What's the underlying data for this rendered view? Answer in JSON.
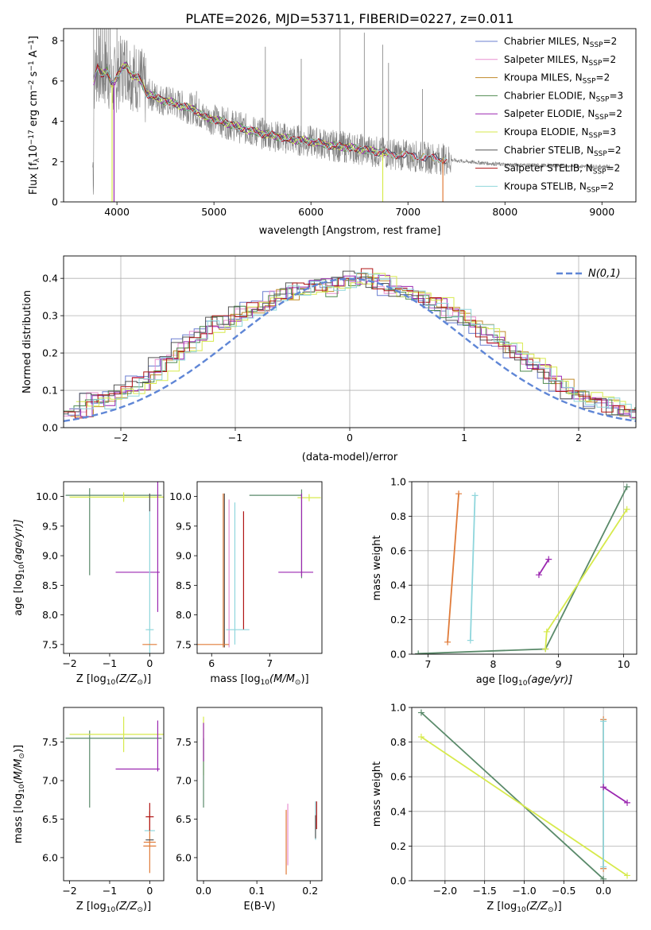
{
  "figure": {
    "title": "PLATE=2026, MJD=53711, FIBERID=0227, z=0.011"
  },
  "model_colors": {
    "Chabrier MILES": "#6b7fd1",
    "Salpeter MILES": "#e88fd0",
    "Kroupa MILES": "#c08a2a",
    "Chabrier ELODIE": "#4f8a4f",
    "Salpeter ELODIE": "#9b27b0",
    "Kroupa ELODIE": "#d7ea4c",
    "Chabrier STELIB": "#555555",
    "Salpeter STELIB": "#b01515",
    "Kroupa STELIB": "#8fd6dc",
    "MILES": "#e07b39",
    "ELODIE": "#5a8a6a",
    "data": "#808080",
    "normal": "#5f86d6"
  },
  "chart_data": [
    {
      "id": "spectrum",
      "type": "line",
      "xlabel": "wavelength [Angstrom, rest frame]",
      "ylabel_main": "Flux [f",
      "ylabel_sub": "λ",
      "ylabel_rest": "10",
      "ylabel_exp1": "−17",
      "ylabel_mid": " erg cm",
      "ylabel_exp2": "−2",
      "ylabel_s": " s",
      "ylabel_exp3": "−1",
      "ylabel_end": " A",
      "ylabel_exp4": "−1",
      "ylabel_close": "]",
      "xlim": [
        3450,
        9350
      ],
      "ylim": [
        0,
        8.6
      ],
      "xticks": [
        "4000",
        "5000",
        "6000",
        "7000",
        "8000",
        "9000"
      ],
      "yticks": [
        "0",
        "2",
        "4",
        "6",
        "8"
      ],
      "legend_position": "top-right",
      "legend": [
        {
          "label": "Chabrier MILES, N",
          "sub": "SSP",
          "suffix": "=2",
          "key": "Chabrier MILES"
        },
        {
          "label": "Salpeter MILES, N",
          "sub": "SSP",
          "suffix": "=2",
          "key": "Salpeter MILES"
        },
        {
          "label": "Kroupa MILES, N",
          "sub": "SSP",
          "suffix": "=2",
          "key": "Kroupa MILES"
        },
        {
          "label": "Chabrier ELODIE, N",
          "sub": "SSP",
          "suffix": "=3",
          "key": "Chabrier ELODIE"
        },
        {
          "label": "Salpeter ELODIE, N",
          "sub": "SSP",
          "suffix": "=2",
          "key": "Salpeter ELODIE"
        },
        {
          "label": "Kroupa ELODIE, N",
          "sub": "SSP",
          "suffix": "=3",
          "key": "Kroupa ELODIE"
        },
        {
          "label": "Chabrier STELIB, N",
          "sub": "SSP",
          "suffix": "=2",
          "key": "Chabrier STELIB"
        },
        {
          "label": "Salpeter STELIB, N",
          "sub": "SSP",
          "suffix": "=2",
          "key": "Salpeter STELIB"
        },
        {
          "label": "Kroupa STELIB, N",
          "sub": "SSP",
          "suffix": "=2",
          "key": "Kroupa STELIB"
        }
      ],
      "model_continuum": [
        [
          3760,
          6.0
        ],
        [
          3800,
          6.7
        ],
        [
          3850,
          6.3
        ],
        [
          3900,
          6.5
        ],
        [
          3950,
          5.8
        ],
        [
          4000,
          6.2
        ],
        [
          4050,
          6.6
        ],
        [
          4100,
          6.8
        ],
        [
          4150,
          6.3
        ],
        [
          4200,
          6.2
        ],
        [
          4250,
          6.0
        ],
        [
          4300,
          5.4
        ],
        [
          4400,
          5.2
        ],
        [
          4500,
          5.0
        ],
        [
          4600,
          4.9
        ],
        [
          4700,
          4.7
        ],
        [
          4800,
          4.6
        ],
        [
          4900,
          4.2
        ],
        [
          5000,
          4.1
        ],
        [
          5200,
          3.8
        ],
        [
          5400,
          3.5
        ],
        [
          5600,
          3.3
        ],
        [
          5800,
          3.1
        ],
        [
          6000,
          3.0
        ],
        [
          6200,
          2.8
        ],
        [
          6400,
          2.7
        ],
        [
          6600,
          2.55
        ],
        [
          6800,
          2.4
        ],
        [
          7000,
          2.3
        ],
        [
          7200,
          2.2
        ],
        [
          7400,
          2.1
        ],
        [
          7600,
          2.0
        ],
        [
          8000,
          1.85
        ],
        [
          8500,
          1.8
        ],
        [
          9000,
          1.75
        ]
      ],
      "data_range": [
        3750,
        9080
      ],
      "data_spikes": [
        [
          3760,
          8.6
        ],
        [
          3790,
          8.6
        ],
        [
          3810,
          8.6
        ],
        [
          3830,
          8.6
        ],
        [
          3850,
          8.6
        ],
        [
          3870,
          8.6
        ],
        [
          3890,
          8.6
        ],
        [
          3910,
          8.6
        ],
        [
          3930,
          8.6
        ],
        [
          4000,
          8.6
        ],
        [
          4820,
          5.5
        ],
        [
          5530,
          7.7
        ],
        [
          5900,
          7.1
        ],
        [
          6300,
          8.6
        ],
        [
          6550,
          8.4
        ],
        [
          6740,
          7.8
        ],
        [
          6800,
          6.9
        ],
        [
          7150,
          5.6
        ]
      ],
      "model_dropouts": [
        [
          3950,
          "Kroupa ELODIE"
        ],
        [
          3970,
          "Salpeter ELODIE"
        ],
        [
          6740,
          "Kroupa ELODIE"
        ],
        [
          7360,
          "MILES"
        ]
      ]
    },
    {
      "id": "residual_hist",
      "type": "histogram",
      "xlabel": "(data-model)/error",
      "ylabel": "Normed distribution",
      "xlim": [
        -2.5,
        2.5
      ],
      "ylim": [
        0,
        0.46
      ],
      "xticks": [
        "−2",
        "−1",
        "0",
        "1",
        "2"
      ],
      "yticks": [
        "0.0",
        "0.1",
        "0.2",
        "0.3",
        "0.4"
      ],
      "bin_width": 0.1,
      "bin_start": -2.5,
      "legend_position": "top-right",
      "normal_label": "N(0,1)",
      "base_hist": [
        0.05,
        0.045,
        0.075,
        0.07,
        0.09,
        0.1,
        0.12,
        0.14,
        0.17,
        0.19,
        0.22,
        0.24,
        0.27,
        0.28,
        0.29,
        0.31,
        0.32,
        0.33,
        0.35,
        0.36,
        0.37,
        0.38,
        0.38,
        0.37,
        0.39,
        0.4,
        0.41,
        0.39,
        0.37,
        0.36,
        0.35,
        0.34,
        0.33,
        0.31,
        0.3,
        0.28,
        0.26,
        0.24,
        0.22,
        0.2,
        0.17,
        0.15,
        0.13,
        0.11,
        0.09,
        0.08,
        0.07,
        0.06,
        0.05,
        0.04,
        0.035,
        0.03,
        0.03,
        0.025,
        0.025,
        0.02,
        0.02,
        0.02,
        0.02,
        0.025,
        0.025,
        0.025,
        0.025,
        0.02,
        0.02,
        0.02,
        0.02,
        0.02,
        0.02,
        0.02
      ]
    },
    {
      "id": "age_vs_Z",
      "type": "errorbar",
      "xlabel": "Z [log",
      "xlabel_sub": "10",
      "xlabel_rest": "(Z/Z",
      "xlabel_sun": "⊙",
      "xlabel_close": ")]",
      "ylabel": "age  [log",
      "ylabel_sub": "10",
      "ylabel_rest": "(age/yr)]",
      "xlim": [
        -2.15,
        0.35
      ],
      "ylim": [
        7.35,
        10.25
      ],
      "xticks": [
        "−2",
        "−1",
        "0"
      ],
      "yticks": [
        "7.5",
        "8.0",
        "8.5",
        "9.0",
        "9.5",
        "10.0"
      ],
      "points": [
        {
          "x": -0.9,
          "y": 10.02,
          "xerr": 1.2,
          "yerr": 0.0,
          "c": "ELODIE"
        },
        {
          "x": -1.5,
          "y": 10.02,
          "xerr": 0.0,
          "yerr": [
            1.35,
            0.12
          ],
          "c": "ELODIE"
        },
        {
          "x": -0.65,
          "y": 9.99,
          "xerr": 1.35,
          "yerr": 0.08,
          "c": "Kroupa ELODIE"
        },
        {
          "x": -0.3,
          "y": 8.72,
          "xerr": 0.55,
          "yerr": 0.0,
          "c": "Salpeter ELODIE"
        },
        {
          "x": 0.2,
          "y": 9.35,
          "xerr": 0.0,
          "yerr": 1.3,
          "c": "Salpeter ELODIE"
        },
        {
          "x": 0.0,
          "y": 7.75,
          "xerr": 0.1,
          "yerr": 2.2,
          "c": "Kroupa STELIB"
        },
        {
          "x": 0.0,
          "y": 7.5,
          "xerr": 0.18,
          "yerr": 0.0,
          "c": "MILES"
        },
        {
          "x": 0.0,
          "y": 9.9,
          "xerr": 0.0,
          "yerr": 0.15,
          "c": "Chabrier STELIB"
        }
      ]
    },
    {
      "id": "age_vs_mass",
      "type": "errorbar",
      "xlabel": "mass [log",
      "xlabel_sub": "10",
      "xlabel_rest": "(M/M",
      "xlabel_sun": "⊙",
      "xlabel_close": ")]",
      "xlim": [
        5.75,
        7.9
      ],
      "ylim": [
        7.35,
        10.25
      ],
      "xticks": [
        "6",
        "7"
      ],
      "yticks": [
        "7.5",
        "8.0",
        "8.5",
        "9.0",
        "9.5",
        "10.0"
      ],
      "points": [
        {
          "x": 6.2,
          "y": 8.75,
          "xerr": 0.0,
          "yerr": 1.3,
          "c": "MILES"
        },
        {
          "x": 6.22,
          "y": 8.75,
          "xerr": 0.0,
          "yerr": 1.3,
          "c": "Chabrier STELIB"
        },
        {
          "x": 6.3,
          "y": 8.7,
          "xerr": 0.0,
          "yerr": 1.25,
          "c": "Salpeter MILES"
        },
        {
          "x": 6.4,
          "y": 8.7,
          "xerr": 0.0,
          "yerr": 1.2,
          "c": "Kroupa STELIB"
        },
        {
          "x": 6.55,
          "y": 8.75,
          "xerr": 0.0,
          "yerr": 1.0,
          "c": "Salpeter STELIB"
        },
        {
          "x": 6.0,
          "y": 7.5,
          "xerr": 0.3,
          "yerr": 0.0,
          "c": "MILES"
        },
        {
          "x": 6.45,
          "y": 7.75,
          "xerr": 0.2,
          "yerr": 0.0,
          "c": "Kroupa STELIB"
        },
        {
          "x": 7.1,
          "y": 10.02,
          "xerr": 0.45,
          "yerr": 0.0,
          "c": "ELODIE"
        },
        {
          "x": 7.55,
          "y": 10.02,
          "xerr": 0.0,
          "yerr": [
            1.4,
            0.1
          ],
          "c": "ELODIE"
        },
        {
          "x": 7.68,
          "y": 9.98,
          "xerr": 0.2,
          "yerr": 0.06,
          "c": "Kroupa ELODIE"
        },
        {
          "x": 7.55,
          "y": 9.35,
          "xerr": 0.0,
          "yerr": 0.7,
          "c": "Salpeter ELODIE"
        },
        {
          "x": 7.45,
          "y": 8.72,
          "xerr": 0.3,
          "yerr": 0.0,
          "c": "Salpeter ELODIE"
        }
      ]
    },
    {
      "id": "weight_vs_age",
      "type": "line",
      "xlabel": "age  [log",
      "xlabel_sub": "10",
      "xlabel_rest": "(age/yr)]",
      "ylabel": "mass weight",
      "xlim": [
        6.75,
        10.2
      ],
      "ylim": [
        0.0,
        1.0
      ],
      "xticks": [
        "7",
        "8",
        "9",
        "10"
      ],
      "yticks": [
        "0.0",
        "0.2",
        "0.4",
        "0.6",
        "0.8",
        "1.0"
      ],
      "series": [
        {
          "c": "MILES",
          "pts": [
            [
              7.3,
              0.07
            ],
            [
              7.47,
              0.93
            ]
          ]
        },
        {
          "c": "Kroupa STELIB",
          "pts": [
            [
              7.65,
              0.08
            ],
            [
              7.72,
              0.92
            ]
          ]
        },
        {
          "c": "Salpeter ELODIE",
          "pts": [
            [
              8.7,
              0.46
            ],
            [
              8.85,
              0.55
            ]
          ]
        },
        {
          "c": "ELODIE",
          "pts": [
            [
              6.85,
              0.003
            ],
            [
              8.8,
              0.03
            ],
            [
              10.05,
              0.97
            ]
          ]
        },
        {
          "c": "Kroupa ELODIE",
          "pts": [
            [
              8.8,
              0.03
            ],
            [
              8.82,
              0.13
            ],
            [
              10.05,
              0.84
            ]
          ]
        }
      ]
    },
    {
      "id": "mass_vs_Z",
      "type": "errorbar",
      "xlabel": "Z [log",
      "xlabel_sub": "10",
      "xlabel_rest": "(Z/Z",
      "xlabel_sun": "⊙",
      "xlabel_close": ")]",
      "ylabel": "mass [log",
      "ylabel_sub": "10",
      "ylabel_rest": "(M/M",
      "ylabel_sun": "⊙",
      "ylabel_close": ")]",
      "xlim": [
        -2.15,
        0.35
      ],
      "ylim": [
        5.7,
        7.95
      ],
      "xticks": [
        "−2",
        "−1",
        "0"
      ],
      "yticks": [
        "6.0",
        "6.5",
        "7.0",
        "7.5"
      ],
      "points": [
        {
          "x": -0.9,
          "y": 7.55,
          "xerr": 1.2,
          "yerr": 0.0,
          "c": "ELODIE"
        },
        {
          "x": -1.5,
          "y": 7.55,
          "xerr": 0.0,
          "yerr": [
            0.9,
            0.1
          ],
          "c": "ELODIE"
        },
        {
          "x": -0.65,
          "y": 7.6,
          "xerr": 1.35,
          "yerr": 0.23,
          "c": "Kroupa ELODIE"
        },
        {
          "x": -0.3,
          "y": 7.15,
          "xerr": 0.55,
          "yerr": 0.0,
          "c": "Salpeter ELODIE"
        },
        {
          "x": 0.2,
          "y": 7.45,
          "xerr": 0.0,
          "yerr": 0.33,
          "c": "Salpeter ELODIE"
        },
        {
          "x": 0.0,
          "y": 6.2,
          "xerr": 0.15,
          "yerr": 0.4,
          "c": "MILES"
        },
        {
          "x": 0.0,
          "y": 6.35,
          "xerr": 0.13,
          "yerr": 0.0,
          "c": "Kroupa STELIB"
        },
        {
          "x": 0.0,
          "y": 6.53,
          "xerr": 0.1,
          "yerr": 0.18,
          "c": "Salpeter STELIB"
        },
        {
          "x": 0.0,
          "y": 6.23,
          "xerr": 0.1,
          "yerr": 0.0,
          "c": "Chabrier STELIB"
        },
        {
          "x": 0.0,
          "y": 6.15,
          "xerr": 0.16,
          "yerr": 0.0,
          "c": "MILES"
        }
      ]
    },
    {
      "id": "mass_vs_ebv",
      "type": "errorbar",
      "xlabel": "E(B-V)",
      "xlim": [
        -0.012,
        0.222
      ],
      "ylim": [
        5.7,
        7.95
      ],
      "xticks": [
        "0.0",
        "0.1",
        "0.2"
      ],
      "yticks": [
        "6.0",
        "6.5",
        "7.0",
        "7.5"
      ],
      "points": [
        {
          "x": 0.0,
          "y": 7.45,
          "xerr": 0.0,
          "yerr": 0.38,
          "c": "Kroupa ELODIE"
        },
        {
          "x": 0.0,
          "y": 7.1,
          "xerr": 0.0,
          "yerr": 0.45,
          "c": "ELODIE"
        },
        {
          "x": 0.0,
          "y": 7.5,
          "xerr": 0.0,
          "yerr": 0.25,
          "c": "Salpeter ELODIE"
        },
        {
          "x": 0.155,
          "y": 6.2,
          "xerr": 0.0,
          "yerr": 0.42,
          "c": "MILES"
        },
        {
          "x": 0.158,
          "y": 6.3,
          "xerr": 0.0,
          "yerr": 0.4,
          "c": "Salpeter MILES"
        },
        {
          "x": 0.21,
          "y": 6.48,
          "xerr": 0.0,
          "yerr": 0.25,
          "c": "Kroupa STELIB"
        },
        {
          "x": 0.212,
          "y": 6.55,
          "xerr": 0.0,
          "yerr": 0.18,
          "c": "Salpeter STELIB"
        },
        {
          "x": 0.21,
          "y": 6.4,
          "xerr": 0.0,
          "yerr": 0.15,
          "c": "Chabrier STELIB"
        }
      ]
    },
    {
      "id": "weight_vs_Z",
      "type": "line",
      "xlabel": "Z [log",
      "xlabel_sub": "10",
      "xlabel_rest": "(Z/Z",
      "xlabel_sun": "⊙",
      "xlabel_close": ")]",
      "ylabel": "mass weight",
      "xlim": [
        -2.42,
        0.42
      ],
      "ylim": [
        0.0,
        1.0
      ],
      "xticks": [
        "−2.0",
        "−1.5",
        "−1.0",
        "−0.5",
        "0.0"
      ],
      "yticks": [
        "0.0",
        "0.2",
        "0.4",
        "0.6",
        "0.8",
        "1.0"
      ],
      "series": [
        {
          "c": "ELODIE",
          "pts": [
            [
              -2.3,
              0.97
            ],
            [
              0.0,
              0.01
            ]
          ]
        },
        {
          "c": "Kroupa ELODIE",
          "pts": [
            [
              -2.3,
              0.83
            ],
            [
              0.3,
              0.03
            ]
          ]
        },
        {
          "c": "MILES",
          "pts": [
            [
              0.0,
              0.07
            ],
            [
              0.0,
              0.93
            ]
          ]
        },
        {
          "c": "Kroupa STELIB",
          "pts": [
            [
              0.0,
              0.08
            ],
            [
              0.0,
              0.92
            ]
          ]
        },
        {
          "c": "Salpeter ELODIE",
          "pts": [
            [
              0.0,
              0.54
            ],
            [
              0.3,
              0.45
            ]
          ]
        }
      ]
    }
  ]
}
